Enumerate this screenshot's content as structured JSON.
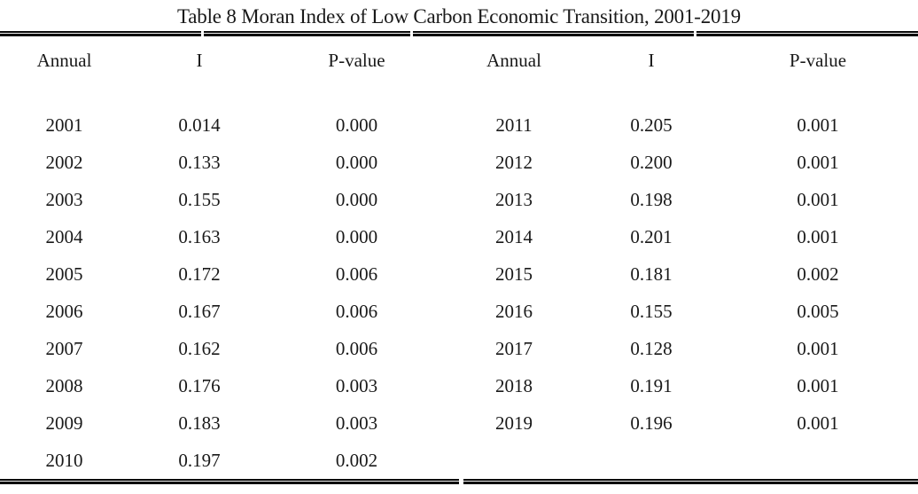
{
  "page": {
    "background": "#ffffff",
    "text_color": "#191919",
    "rule_color": "#0a0a0a"
  },
  "table": {
    "caption": "Table 8 Moran Index of Low Carbon Economic Transition, 2001-2019",
    "columns": [
      "Annual",
      "I",
      "P-value",
      "Annual",
      "I",
      "P-value"
    ],
    "rows": [
      [
        "2001",
        "0.014",
        "0.000",
        "2011",
        "0.205",
        "0.001"
      ],
      [
        "2002",
        "0.133",
        "0.000",
        "2012",
        "0.200",
        "0.001"
      ],
      [
        "2003",
        "0.155",
        "0.000",
        "2013",
        "0.198",
        "0.001"
      ],
      [
        "2004",
        "0.163",
        "0.000",
        "2014",
        "0.201",
        "0.001"
      ],
      [
        "2005",
        "0.172",
        "0.006",
        "2015",
        "0.181",
        "0.002"
      ],
      [
        "2006",
        "0.167",
        "0.006",
        "2016",
        "0.155",
        "0.005"
      ],
      [
        "2007",
        "0.162",
        "0.006",
        "2017",
        "0.128",
        "0.001"
      ],
      [
        "2008",
        "0.176",
        "0.003",
        "2018",
        "0.191",
        "0.001"
      ],
      [
        "2009",
        "0.183",
        "0.003",
        "2019",
        "0.196",
        "0.001"
      ],
      [
        "2010",
        "0.197",
        "0.002",
        "",
        "",
        ""
      ]
    ]
  }
}
